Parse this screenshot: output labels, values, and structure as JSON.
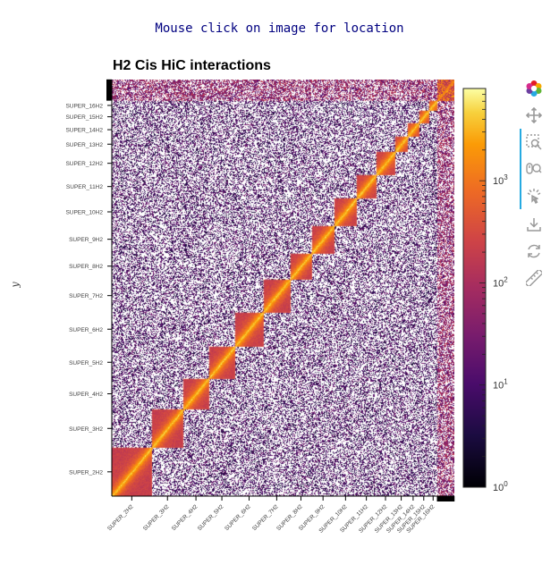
{
  "header": {
    "instruction": "Mouse click on image for location"
  },
  "chart_data": {
    "type": "heatmap",
    "title": "H2 Cis HiC interactions",
    "xlabel": "",
    "ylabel": "y",
    "x_tick_labels": [
      "SUPER_2H2",
      "SUPER_3H2",
      "SUPER_4H2",
      "SUPER_5H2",
      "SUPER_6H2",
      "SUPER_7H2",
      "SUPER_8H2",
      "SUPER_9H2",
      "SUPER_10H2",
      "SUPER_11H2",
      "SUPER_12H2",
      "SUPER_13H2",
      "SUPER_14H2",
      "SUPER_15H2",
      "SUPER_16H2"
    ],
    "y_tick_labels": [
      "SUPER_2H2",
      "SUPER_3H2",
      "SUPER_4H2",
      "SUPER_5H2",
      "SUPER_6H2",
      "SUPER_7H2",
      "SUPER_8H2",
      "SUPER_9H2",
      "SUPER_10H2",
      "SUPER_11H2",
      "SUPER_12H2",
      "SUPER_13H2",
      "SUPER_14H2",
      "SUPER_15H2",
      "SUPER_16H2"
    ],
    "chromosome_sizes": [
      47,
      37,
      30,
      31,
      33,
      32,
      25,
      27,
      26,
      23,
      22,
      15,
      13,
      12,
      10
    ],
    "colorbar": {
      "scale": "log",
      "range": [
        1,
        8000
      ],
      "tick_values": [
        1,
        10,
        100,
        1000
      ],
      "tick_labels": [
        "10",
        "10",
        "10",
        "10"
      ],
      "tick_exponents": [
        "0",
        "1",
        "2",
        "3"
      ],
      "colormap": "inferno"
    },
    "grid": false
  },
  "toolbar": {
    "tools": [
      {
        "name": "bokeh-logo-icon",
        "active": false
      },
      {
        "name": "pan-icon",
        "active": false
      },
      {
        "name": "box-zoom-icon",
        "active": true
      },
      {
        "name": "wheel-zoom-icon",
        "active": true
      },
      {
        "name": "tap-icon",
        "active": true
      },
      {
        "name": "save-icon",
        "active": false
      },
      {
        "name": "reset-icon",
        "active": false
      },
      {
        "name": "ruler-icon",
        "active": false
      }
    ]
  }
}
